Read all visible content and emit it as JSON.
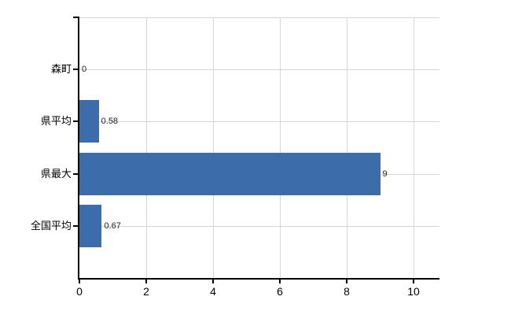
{
  "chart_data": {
    "type": "bar",
    "orientation": "horizontal",
    "title": "",
    "xlabel": "",
    "ylabel": "",
    "categories": [
      "森町",
      "県平均",
      "県最大",
      "全国平均"
    ],
    "values": [
      0,
      0.58,
      9,
      0.67
    ],
    "value_labels": [
      "0",
      "0.58",
      "9",
      "0.67"
    ],
    "x_ticks": [
      0,
      2,
      4,
      6,
      8,
      10
    ],
    "x_tick_labels": [
      "0",
      "2",
      "4",
      "6",
      "8",
      "10"
    ],
    "xlim": [
      0,
      10.8
    ],
    "grid": true,
    "legend": false,
    "colors": {
      "bar": "#3c6ca9",
      "grid": "#d6d6d6",
      "axis": "#000000",
      "category_text": "#000000",
      "value_text": "#222222",
      "tick_text": "#000000",
      "background": "#ffffff"
    }
  }
}
